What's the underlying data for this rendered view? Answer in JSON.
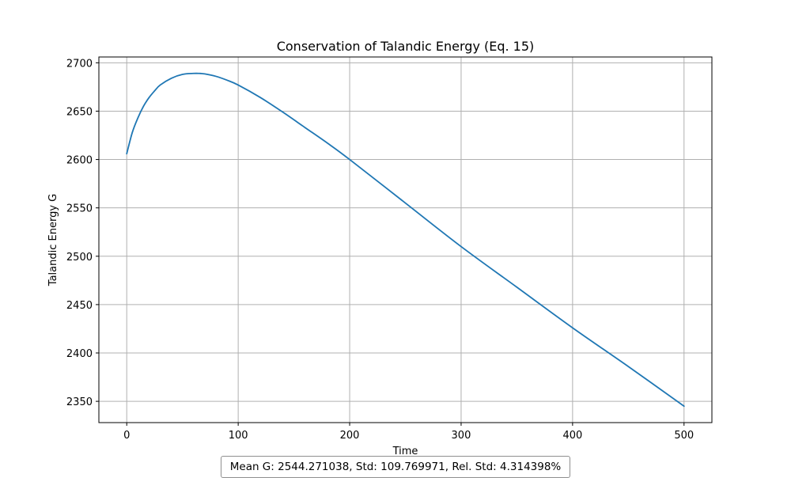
{
  "chart_data": {
    "type": "line",
    "title": "Conservation of Talandic Energy (Eq. 15)",
    "xlabel": "Time",
    "ylabel": "Talandic Energy G",
    "xlim": [
      -25,
      525
    ],
    "ylim": [
      2328,
      2706
    ],
    "xticks": [
      0,
      100,
      200,
      300,
      400,
      500
    ],
    "yticks": [
      2350,
      2400,
      2450,
      2500,
      2550,
      2600,
      2650,
      2700
    ],
    "grid": true,
    "series": [
      {
        "color": "#1f77b4",
        "x": [
          0,
          5,
          10,
          15,
          20,
          25,
          30,
          40,
          50,
          60,
          65,
          70,
          80,
          90,
          100,
          120,
          140,
          160,
          180,
          200,
          250,
          300,
          350,
          400,
          450,
          500
        ],
        "y": [
          2606,
          2628,
          2643,
          2655,
          2664,
          2671,
          2677,
          2684,
          2688,
          2689,
          2689,
          2688.5,
          2686,
          2682,
          2677,
          2664,
          2649,
          2633,
          2617,
          2600,
          2555,
          2510,
          2468,
          2426,
          2386,
          2345
        ]
      }
    ]
  },
  "stats_text": "Mean G: 2544.271038, Std: 109.769971, Rel. Std: 4.314398%"
}
